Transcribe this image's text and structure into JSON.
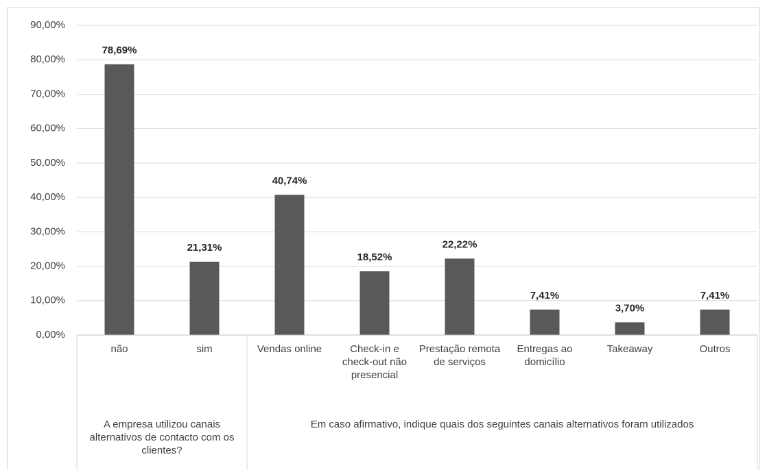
{
  "chart_data": {
    "type": "bar",
    "color": "#595959",
    "grid": true,
    "ylim": [
      0,
      90
    ],
    "yticks": [
      {
        "value": 0,
        "label": "0,00%"
      },
      {
        "value": 10,
        "label": "10,00%"
      },
      {
        "value": 20,
        "label": "20,00%"
      },
      {
        "value": 30,
        "label": "30,00%"
      },
      {
        "value": 40,
        "label": "40,00%"
      },
      {
        "value": 50,
        "label": "50,00%"
      },
      {
        "value": 60,
        "label": "60,00%"
      },
      {
        "value": 70,
        "label": "70,00%"
      },
      {
        "value": 80,
        "label": "80,00%"
      },
      {
        "value": 90,
        "label": "90,00%"
      }
    ],
    "groups": [
      {
        "label": "A empresa utilizou canais alternativos de contacto com os clientes?",
        "categories": [
          "não",
          "sim"
        ],
        "values": [
          78.69,
          21.31
        ],
        "value_labels": [
          "78,69%",
          "21,31%"
        ]
      },
      {
        "label": "Em caso afirmativo, indique quais dos seguintes canais alternativos foram utilizados",
        "categories": [
          "Vendas online",
          "Check-in e check-out não presencial",
          "Prestação remota de serviços",
          "Entregas ao domicílio",
          "Takeaway",
          "Outros"
        ],
        "values": [
          40.74,
          18.52,
          22.22,
          7.41,
          3.7,
          7.41
        ],
        "value_labels": [
          "40,74%",
          "18,52%",
          "22,22%",
          "7,41%",
          "3,70%",
          "7,41%"
        ]
      }
    ]
  }
}
